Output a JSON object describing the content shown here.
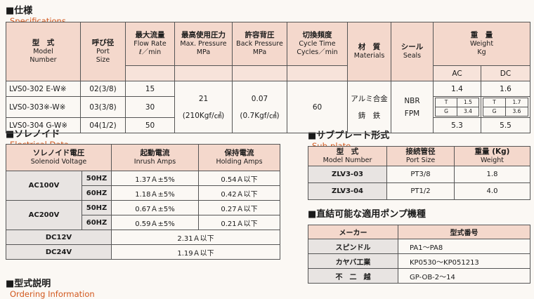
{
  "sections": {
    "spec": {
      "ja": "■仕様",
      "en": "Specifications"
    },
    "sol": {
      "ja": "■ソレノイド",
      "en": "Electrical Data"
    },
    "sub": {
      "ja": "■サブプレート形式",
      "en": "Sub-plate"
    },
    "pump": {
      "ja": "■直結可能な適用ポンプ機種",
      "en": ""
    },
    "order": {
      "ja": "■型式説明",
      "en": "Ordering Information"
    }
  },
  "spec": {
    "headers": {
      "model": {
        "ja": "型　式",
        "en1": "Model",
        "en2": "Number"
      },
      "port": {
        "ja": "呼び径",
        "en1": "Port",
        "en2": "Size"
      },
      "flow": {
        "ja": "最大流量",
        "en": "Flow Rate",
        "unit": "ℓ／min"
      },
      "pressure": {
        "ja": "最高使用圧力",
        "en": "Max. Pressure",
        "unit": "MPa"
      },
      "back": {
        "ja": "許容背圧",
        "en": "Back Pressure",
        "unit": "MPa"
      },
      "cycle": {
        "ja": "切換頻度",
        "en": "Cycle Time",
        "unit": "Cycles／min"
      },
      "material": {
        "ja": "材　質",
        "en": "Materials"
      },
      "seal": {
        "ja": "シール",
        "en": "Seals"
      },
      "weight": {
        "ja": "重　量",
        "en": "Weight",
        "unit": "Kg",
        "ac": "AC",
        "dc": "DC"
      }
    },
    "rows": [
      {
        "model": "LVS0-302 E-W※",
        "port": "02(3/8)",
        "flow": "15"
      },
      {
        "model": "LVS0-303※-W※",
        "port": "03(3/8)",
        "flow": "30"
      },
      {
        "model": "LVS0-304 G-W※",
        "port": "04(1/2)",
        "flow": "50"
      }
    ],
    "pressure": {
      "v1": "21",
      "v2": "(210Kgf/㎠)"
    },
    "back": {
      "v1": "0.07",
      "v2": "(0.7Kgf/㎠)"
    },
    "cycle": "60",
    "material": {
      "m1": "アルミ合金",
      "m2": "鋳　鉄"
    },
    "seal": {
      "s1": "NBR",
      "s2": "FPM"
    },
    "weight": {
      "ac1": "1.4",
      "dc1": "1.6",
      "ac_t": "T",
      "ac_t_v": "1.5",
      "ac_g": "G",
      "ac_g_v": "3.4",
      "dc_t": "T",
      "dc_t_v": "1.7",
      "dc_g": "G",
      "dc_g_v": "3.6",
      "ac3": "5.3",
      "dc3": "5.5"
    }
  },
  "sol": {
    "headers": {
      "voltage": {
        "ja": "ソレノイド電圧",
        "en": "Solenoid Voltage"
      },
      "inrush": {
        "ja": "起動電流",
        "en": "Inrush Amps"
      },
      "holding": {
        "ja": "保持電流",
        "en": "Holding Amps"
      }
    },
    "ac100": {
      "label": "AC100V",
      "rows": [
        {
          "hz": "50HZ",
          "inrush": "1.37Ａ±5%",
          "hold": "0.54Ａ以下"
        },
        {
          "hz": "60HZ",
          "inrush": "1.18Ａ±5%",
          "hold": "0.42Ａ以下"
        }
      ]
    },
    "ac200": {
      "label": "AC200V",
      "rows": [
        {
          "hz": "50HZ",
          "inrush": "0.67Ａ±5%",
          "hold": "0.27Ａ以下"
        },
        {
          "hz": "60HZ",
          "inrush": "0.59Ａ±5%",
          "hold": "0.21Ａ以下"
        }
      ]
    },
    "dc12": {
      "label": "DC12V",
      "value": "2.31Ａ以下"
    },
    "dc24": {
      "label": "DC24V",
      "value": "1.19Ａ以下"
    }
  },
  "sub": {
    "headers": {
      "model": {
        "ja": "型　式",
        "en": "Model Number"
      },
      "port": {
        "ja": "接続管径",
        "en": "Port Size"
      },
      "weight": {
        "ja": "重量 (Kg)",
        "en": "Weight"
      }
    },
    "rows": [
      {
        "model": "ZLV3-03",
        "port": "PT3/8",
        "weight": "1.8"
      },
      {
        "model": "ZLV3-04",
        "port": "PT1/2",
        "weight": "4.0"
      }
    ]
  },
  "pump": {
    "headers": {
      "maker": "メーカー",
      "model": "型式番号"
    },
    "rows": [
      {
        "maker": "スピンドル",
        "model": "PA1～PA8"
      },
      {
        "maker": "カヤバ工業",
        "model": "KP0530～KP051213"
      },
      {
        "maker": "不　二　越",
        "model": "GP-OB-2～14"
      }
    ]
  }
}
